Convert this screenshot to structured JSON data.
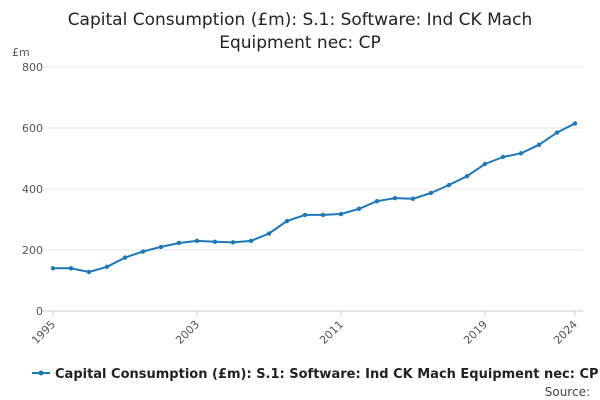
{
  "chart_data": {
    "type": "line",
    "title_lines": [
      "Capital Consumption (£m): S.1: Software: Ind CK Mach",
      "Equipment nec: CP"
    ],
    "y_unit": "£m",
    "ylim": [
      0,
      800
    ],
    "y_ticks": [
      0,
      200,
      400,
      600,
      800
    ],
    "xlim": [
      1995,
      2024
    ],
    "x_ticks": [
      1995,
      2003,
      2011,
      2019,
      2024
    ],
    "grid": true,
    "legend_position": "bottom",
    "series": [
      {
        "name": "Capital Consumption (£m): S.1: Software: Ind CK Mach Equipment nec: CP",
        "color": "#1f77b4",
        "x": [
          1995,
          1996,
          1997,
          1998,
          1999,
          2000,
          2001,
          2002,
          2003,
          2004,
          2005,
          2006,
          2007,
          2008,
          2009,
          2010,
          2011,
          2012,
          2013,
          2014,
          2015,
          2016,
          2017,
          2018,
          2019,
          2020,
          2021,
          2022,
          2023,
          2024
        ],
        "y": [
          140,
          140,
          128,
          145,
          175,
          195,
          210,
          223,
          230,
          227,
          225,
          230,
          254,
          295,
          315,
          315,
          318,
          335,
          360,
          370,
          368,
          387,
          413,
          442,
          482,
          505,
          517,
          545,
          585,
          615
        ]
      }
    ],
    "source_label": "Source:"
  }
}
